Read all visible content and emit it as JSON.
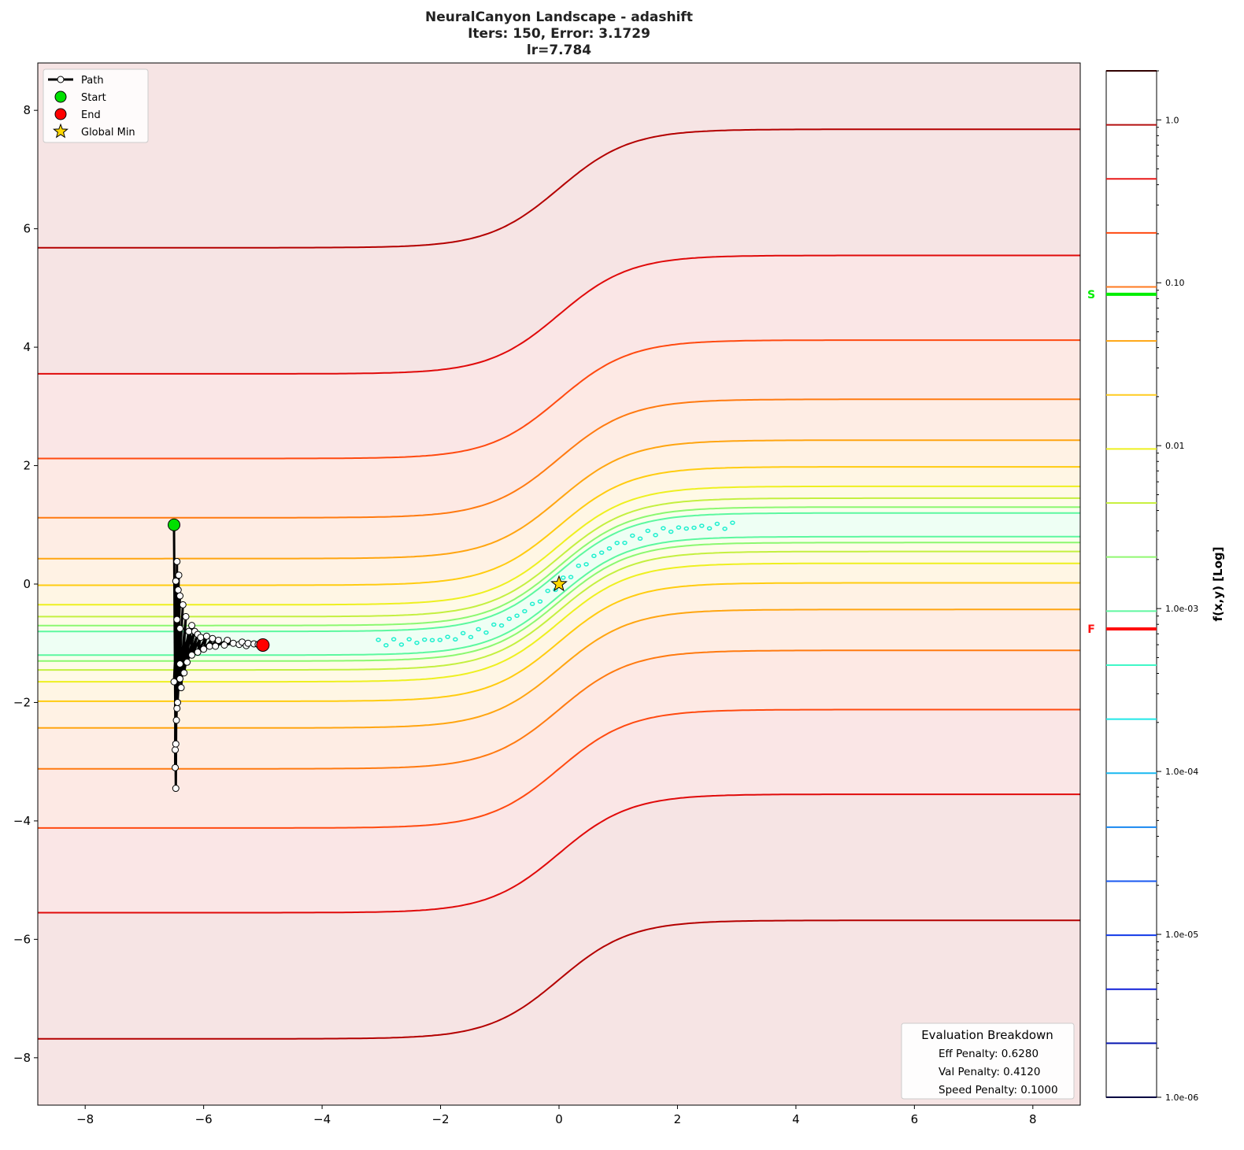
{
  "chart_data": {
    "type": "contour",
    "title_lines": [
      "NeuralCanyon Landscape - adashift",
      "Iters: 150, Error: 3.1729",
      "lr=7.784"
    ],
    "xlim": [
      -8.8,
      8.8
    ],
    "ylim": [
      -8.8,
      8.8
    ],
    "xticks": [
      -8,
      -6,
      -4,
      -2,
      0,
      2,
      4,
      6,
      8
    ],
    "yticks": [
      -8,
      -6,
      -4,
      -2,
      0,
      2,
      4,
      6,
      8
    ],
    "grid": false,
    "contours": [
      {
        "offset": 6.68,
        "color": "#b40000"
      },
      {
        "offset": 4.55,
        "color": "#e00a0a"
      },
      {
        "offset": 3.12,
        "color": "#ff4a10"
      },
      {
        "offset": 2.12,
        "color": "#ff7a10"
      },
      {
        "offset": 1.43,
        "color": "#ffa510"
      },
      {
        "offset": 0.98,
        "color": "#ffcc10"
      },
      {
        "offset": 0.65,
        "color": "#eef020"
      },
      {
        "offset": 0.45,
        "color": "#c4f040"
      },
      {
        "offset": 0.3,
        "color": "#8cf870"
      },
      {
        "offset": 0.2,
        "color": "#5cf8a0"
      }
    ],
    "canyon_dots_color": "#20f0d0",
    "path": [
      [
        -6.5,
        1.0
      ],
      [
        -6.5,
        0.95
      ],
      [
        -6.47,
        -3.45
      ],
      [
        -6.45,
        0.38
      ],
      [
        -6.48,
        -3.1
      ],
      [
        -6.47,
        0.05
      ],
      [
        -6.48,
        -2.8
      ],
      [
        -6.43,
        -0.1
      ],
      [
        -6.47,
        -2.7
      ],
      [
        -6.42,
        0.15
      ],
      [
        -6.46,
        -2.3
      ],
      [
        -6.4,
        -0.2
      ],
      [
        -6.45,
        -2.1
      ],
      [
        -6.35,
        -0.35
      ],
      [
        -6.44,
        -2.0
      ],
      [
        -6.45,
        -0.6
      ],
      [
        -6.5,
        -1.65
      ],
      [
        -6.4,
        -0.75
      ],
      [
        -6.38,
        -1.75
      ],
      [
        -6.3,
        -0.55
      ],
      [
        -6.4,
        -1.6
      ],
      [
        -6.25,
        -0.8
      ],
      [
        -6.33,
        -1.5
      ],
      [
        -6.2,
        -0.7
      ],
      [
        -6.4,
        -1.35
      ],
      [
        -6.15,
        -0.8
      ],
      [
        -6.28,
        -1.32
      ],
      [
        -6.1,
        -0.85
      ],
      [
        -6.2,
        -1.2
      ],
      [
        -6.05,
        -0.9
      ],
      [
        -6.1,
        -1.15
      ],
      [
        -5.95,
        -0.88
      ],
      [
        -6.0,
        -1.1
      ],
      [
        -5.85,
        -0.92
      ],
      [
        -5.9,
        -1.05
      ],
      [
        -5.75,
        -0.95
      ],
      [
        -5.8,
        -1.05
      ],
      [
        -5.6,
        -0.95
      ],
      [
        -5.65,
        -1.03
      ],
      [
        -5.5,
        -1.0
      ],
      [
        -5.4,
        -1.02
      ],
      [
        -5.35,
        -0.98
      ],
      [
        -5.28,
        -1.04
      ],
      [
        -5.25,
        -1.0
      ],
      [
        -5.15,
        -1.01
      ],
      [
        -5.08,
        -1.02
      ],
      [
        -5.0,
        -1.03
      ]
    ],
    "markers": {
      "start": {
        "x": -6.5,
        "y": 1.0,
        "color": "#00e000"
      },
      "end": {
        "x": -5.0,
        "y": -1.03,
        "color": "#ff0000"
      },
      "global_min": {
        "x": 0,
        "y": 0,
        "color": "#ffd700"
      }
    },
    "legend": {
      "placement": "top-left",
      "entries": [
        "Path",
        "Start",
        "End",
        "Global Min"
      ]
    },
    "colorbar": {
      "label": "f(x,y) [Log]",
      "scale": "log",
      "range": [
        1e-06,
        2.0
      ],
      "tick_values": [
        1.0,
        0.1,
        0.01,
        0.001,
        0.0001,
        1e-05,
        1e-06
      ],
      "tick_labels": [
        "1.0",
        "0.10",
        "0.01",
        "1.0e-03",
        "1.0e-04",
        "1.0e-05",
        "1.0e-06"
      ],
      "level_colors": [
        "#300000",
        "#b41010",
        "#e81818",
        "#ff4a10",
        "#ff7a20",
        "#ffa510",
        "#ffcc20",
        "#eef020",
        "#c8f040",
        "#90f870",
        "#60f8a0",
        "#40f8c8",
        "#20e8e8",
        "#18b8f0",
        "#1888f0",
        "#1858f0",
        "#1038e8",
        "#1020d8",
        "#0818b0",
        "#000040"
      ],
      "markers": [
        {
          "label": "S",
          "value": 0.085,
          "color": "#00ee00"
        },
        {
          "label": "F",
          "value": 0.00075,
          "color": "#ff1010"
        }
      ]
    },
    "evaluation": {
      "title": "Evaluation Breakdown",
      "lines": [
        "Eff Penalty: 0.6280",
        "Val Penalty: 0.4120",
        "Speed Penalty: 0.1000"
      ]
    }
  }
}
